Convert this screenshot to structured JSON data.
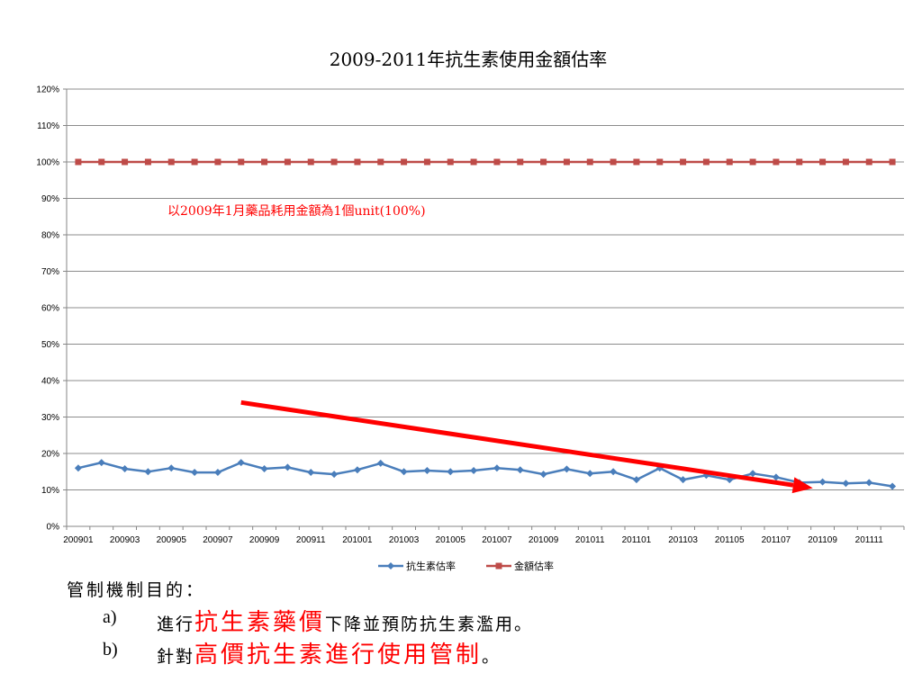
{
  "chart_data": {
    "type": "line",
    "title": "2009-2011年抗生素使用金額估率",
    "x": [
      "200901",
      "200902",
      "200903",
      "200904",
      "200905",
      "200906",
      "200907",
      "200908",
      "200909",
      "200910",
      "200911",
      "200912",
      "201001",
      "201002",
      "201003",
      "201004",
      "201005",
      "201006",
      "201007",
      "201008",
      "201009",
      "201010",
      "201011",
      "201012",
      "201101",
      "201102",
      "201103",
      "201104",
      "201105",
      "201106",
      "201107",
      "201108",
      "201109",
      "201110",
      "201111",
      "201112"
    ],
    "x_tick_labels": [
      "200901",
      "200903",
      "200905",
      "200907",
      "200909",
      "200911",
      "201001",
      "201003",
      "201005",
      "201007",
      "201009",
      "201011",
      "201101",
      "201103",
      "201105",
      "201107",
      "201109",
      "201111"
    ],
    "y_tick_labels": [
      "0%",
      "10%",
      "20%",
      "30%",
      "40%",
      "50%",
      "60%",
      "70%",
      "80%",
      "90%",
      "100%",
      "110%",
      "120%"
    ],
    "ylim": [
      0,
      120
    ],
    "y_unit": "%",
    "grid": true,
    "legend_position": "bottom",
    "series": [
      {
        "name": "抗生素估率",
        "color": "#4a7ebb",
        "marker": "diamond",
        "values": [
          16,
          17.5,
          15.8,
          15,
          16,
          14.8,
          14.8,
          17.5,
          15.8,
          16.2,
          14.8,
          14.3,
          15.5,
          17.3,
          15,
          15.3,
          15,
          15.3,
          16,
          15.5,
          14.3,
          15.7,
          14.5,
          15,
          12.8,
          16,
          12.8,
          14,
          12.8,
          14.5,
          13.5,
          12,
          12.2,
          11.8,
          12,
          11
        ]
      },
      {
        "name": "金額估率",
        "color": "#be4b48",
        "marker": "square",
        "values": [
          100,
          100,
          100,
          100,
          100,
          100,
          100,
          100,
          100,
          100,
          100,
          100,
          100,
          100,
          100,
          100,
          100,
          100,
          100,
          100,
          100,
          100,
          100,
          100,
          100,
          100,
          100,
          100,
          100,
          100,
          100,
          100,
          100,
          100,
          100,
          100
        ]
      }
    ],
    "annotations": [
      {
        "text": "以2009年1月藥品耗用金額為1個unit(100%)",
        "color": "#ff0000"
      }
    ],
    "trend_arrow": {
      "color": "#ff0000",
      "from": {
        "x": "200908",
        "y": 34
      },
      "to": {
        "x": "201108",
        "y": 10.5
      }
    }
  },
  "notes": {
    "heading": "管制機制目的：",
    "items": [
      {
        "marker": "a)",
        "parts": [
          {
            "text": "進行",
            "style": "normal"
          },
          {
            "text": "抗生素藥價",
            "style": "emph"
          },
          {
            "text": "下降並預防抗生素濫用。",
            "style": "normal"
          }
        ]
      },
      {
        "marker": "b)",
        "parts": [
          {
            "text": "針對",
            "style": "normal"
          },
          {
            "text": "高價抗生素進行使用管制",
            "style": "emph"
          },
          {
            "text": "。",
            "style": "normal"
          }
        ]
      }
    ]
  }
}
